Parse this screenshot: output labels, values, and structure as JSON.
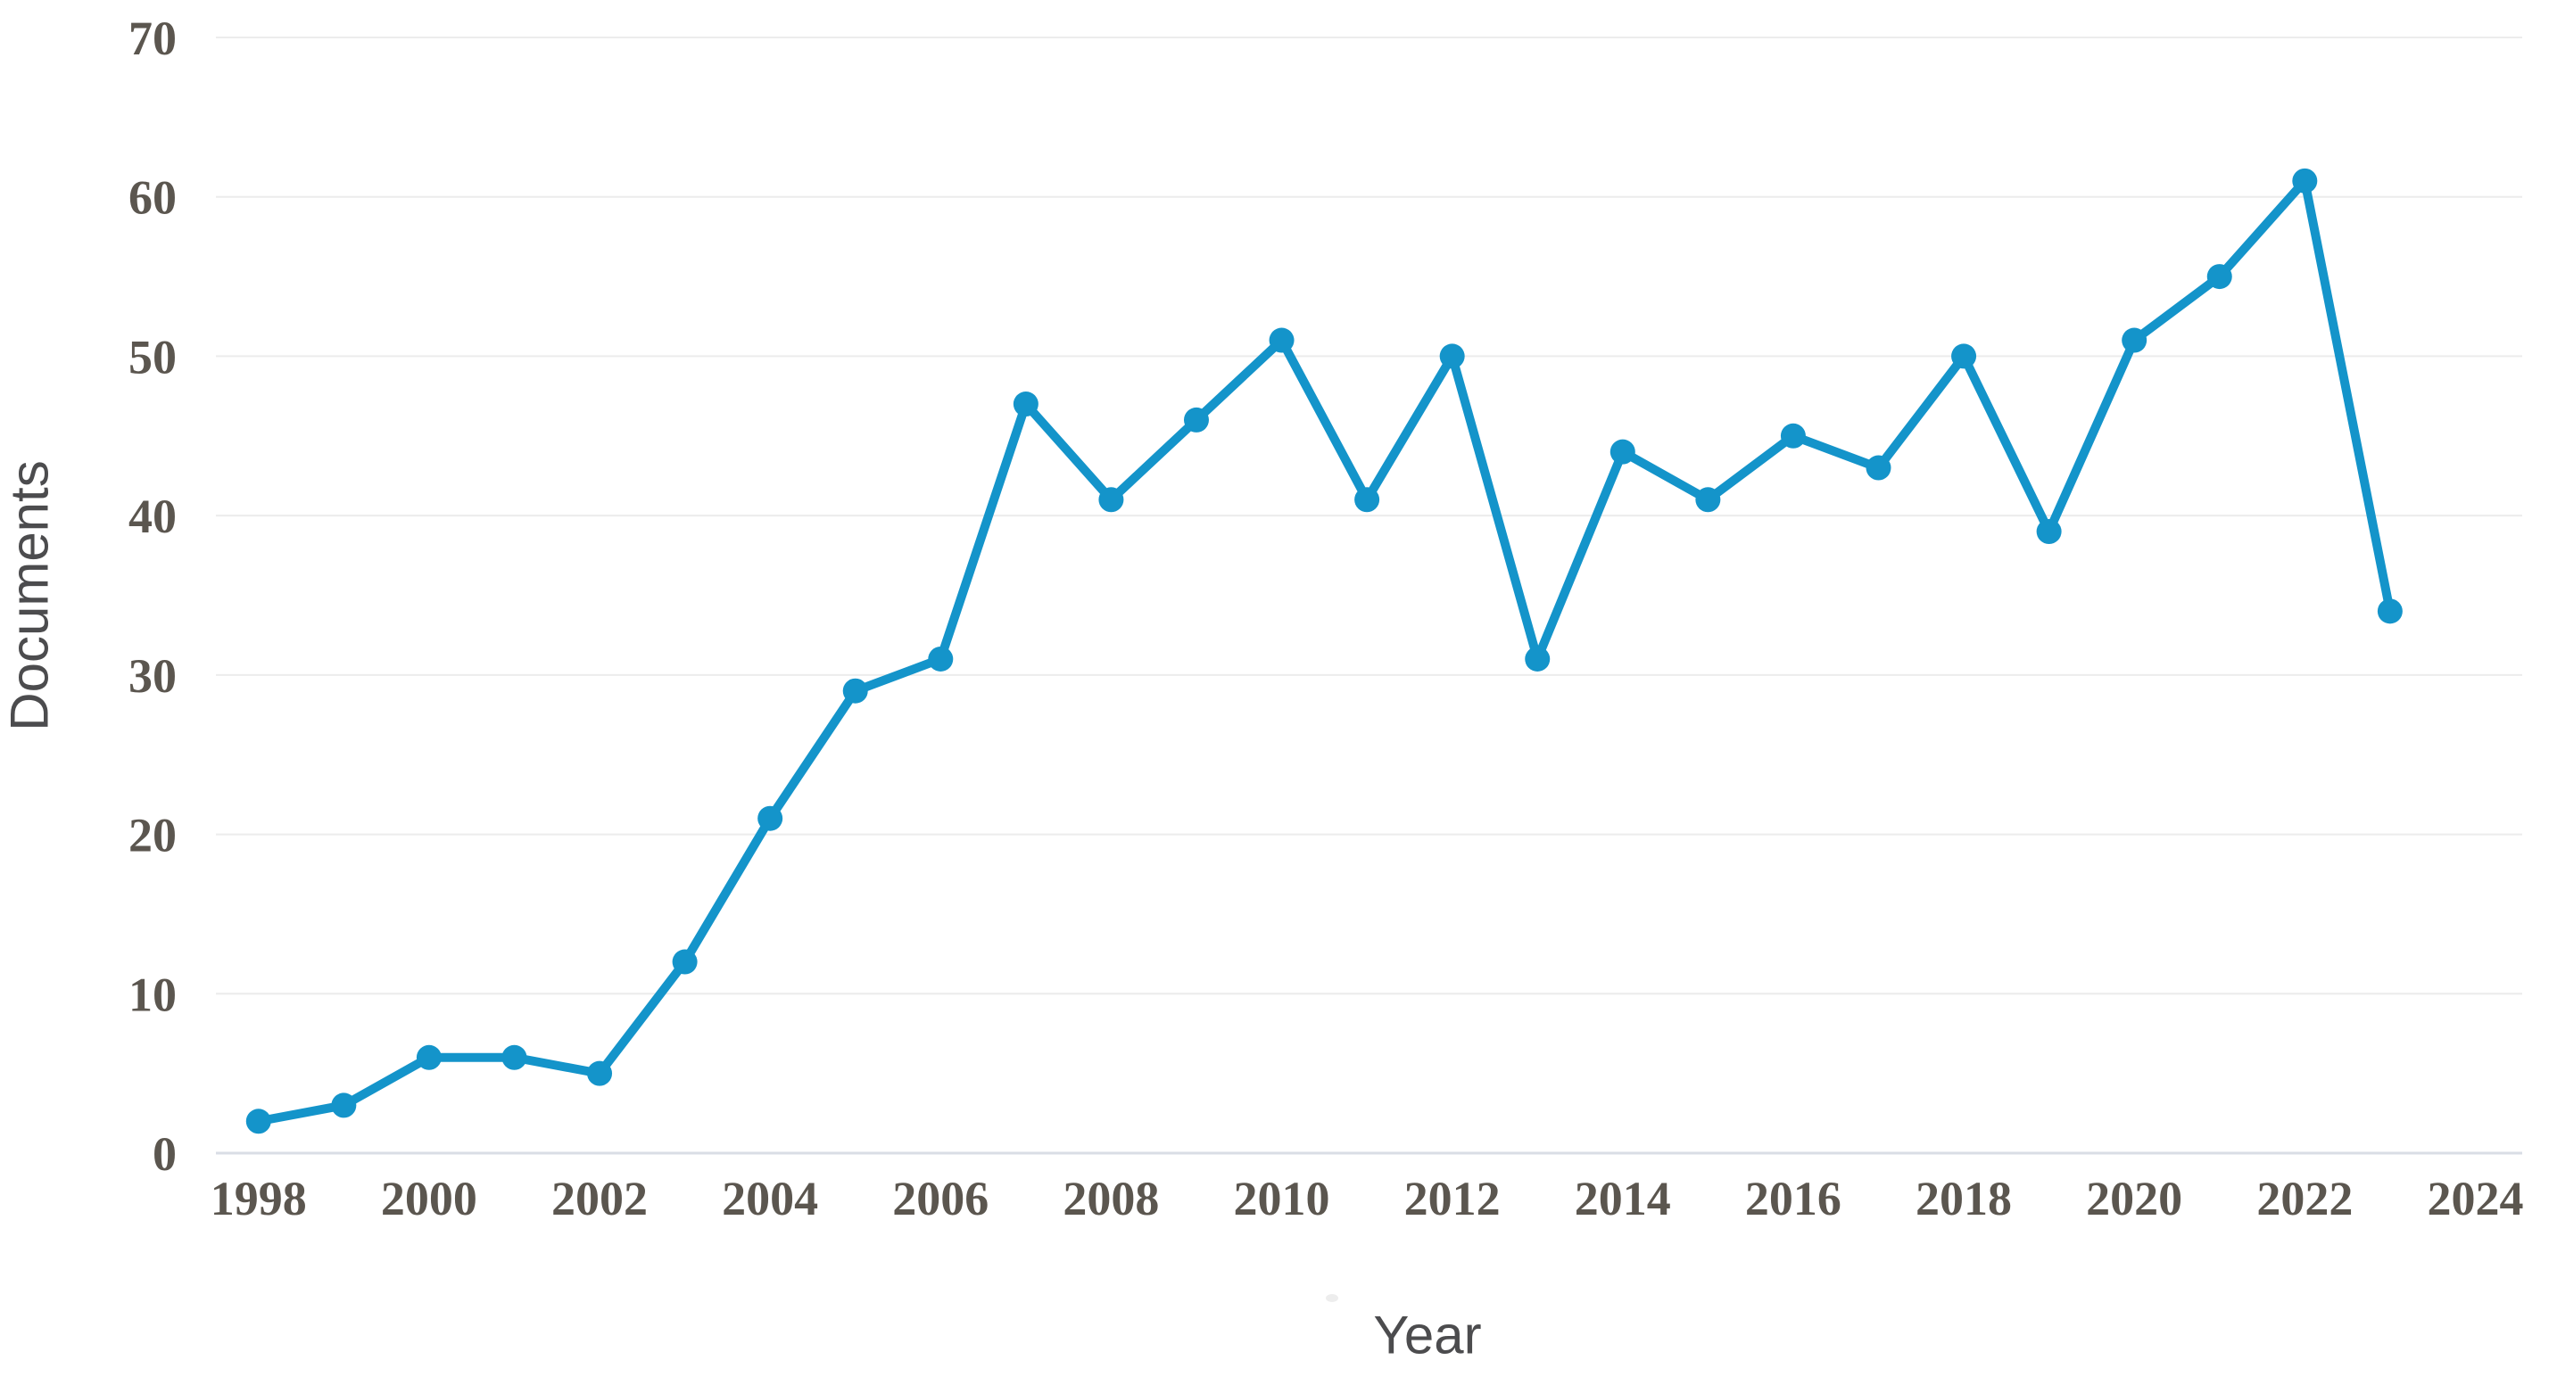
{
  "page": {
    "background": "#ffffff"
  },
  "chart_data": {
    "type": "line",
    "title": "",
    "xlabel": "Year",
    "ylabel": "Documents",
    "series_name": "Documents",
    "x": [
      1998,
      1999,
      2000,
      2001,
      2002,
      2003,
      2004,
      2005,
      2006,
      2007,
      2008,
      2009,
      2010,
      2011,
      2012,
      2013,
      2014,
      2015,
      2016,
      2017,
      2018,
      2019,
      2020,
      2021,
      2022,
      2023
    ],
    "values": [
      2,
      3,
      6,
      6,
      5,
      12,
      21,
      29,
      31,
      47,
      41,
      46,
      51,
      41,
      50,
      31,
      44,
      41,
      45,
      43,
      50,
      39,
      51,
      55,
      61,
      34
    ],
    "x_ticks": [
      1998,
      2000,
      2002,
      2004,
      2006,
      2008,
      2010,
      2012,
      2014,
      2016,
      2018,
      2020,
      2022,
      2024
    ],
    "y_ticks": [
      0,
      10,
      20,
      30,
      40,
      50,
      60,
      70
    ],
    "xlim": [
      1997.5,
      2024.55
    ],
    "ylim": [
      0,
      70
    ],
    "grid": "horizontal",
    "legend": "none",
    "line_color": "#1494ca",
    "marker": "circle",
    "gridline_color": "#ececec",
    "baseline_color": "#d9dde5",
    "tick_label_color": "#5b564f",
    "axis_title_color": "#4c4c4e"
  }
}
